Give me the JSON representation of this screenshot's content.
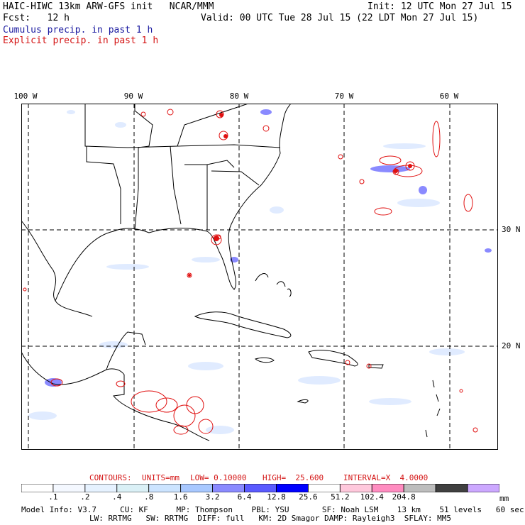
{
  "header": {
    "title": "HAIC-HIWC 13km ARW-GFS init   NCAR/MMM",
    "init": "Init: 12 UTC Mon 27 Jul 15",
    "forecast": "Fcst:   12 h",
    "valid": "Valid: 00 UTC Tue 28 Jul 15 (22 LDT Mon 27 Jul 15)",
    "legend_cumulus": "Cumulus precip. in past 1 h",
    "legend_explicit": "Explicit precip. in past 1 h"
  },
  "map": {
    "lon_labels": [
      "100 W",
      "90 W",
      "80 W",
      "70 W",
      "60 W"
    ],
    "lat_labels": [
      "30 N",
      "20 N"
    ],
    "colors": {
      "cumulus": "#3a3aff",
      "explicit": "#e01010",
      "coast": "#000000",
      "grid": "#000000"
    }
  },
  "contour_info": {
    "contours": "CONTOURS:",
    "units": "UNITS=mm",
    "low": "LOW= 0.10000",
    "high": "HIGH=  25.600",
    "interval": "INTERVAL=X  4.0000"
  },
  "colorbar": {
    "colors": [
      "#ffffff",
      "#f4f8ff",
      "#e6f2ff",
      "#daf0f6",
      "#cce4ff",
      "#a8c8ff",
      "#8a8aff",
      "#5a5aff",
      "#0000ff",
      "#ffffff",
      "#ffc8dc",
      "#ff8cc0",
      "#bdbdbd",
      "#404040",
      "#cca8ff"
    ],
    "ticks": [
      ".1",
      ".2",
      ".4",
      ".8",
      "1.6",
      "3.2",
      "6.4",
      "12.8",
      "25.6",
      "51.2",
      "102.4",
      "204.8"
    ],
    "unit": "mm"
  },
  "model_info": {
    "line1": "Model Info: V3.7     CU: KF      MP: Thompson    PBL: YSU       SF: Noah LSM    13 km    51 levels   60 sec",
    "line2": "LW: RRTMG   SW: RRTMG  DIFF: full   KM: 2D Smagor DAMP: Rayleigh3  SFLAY: MM5"
  }
}
